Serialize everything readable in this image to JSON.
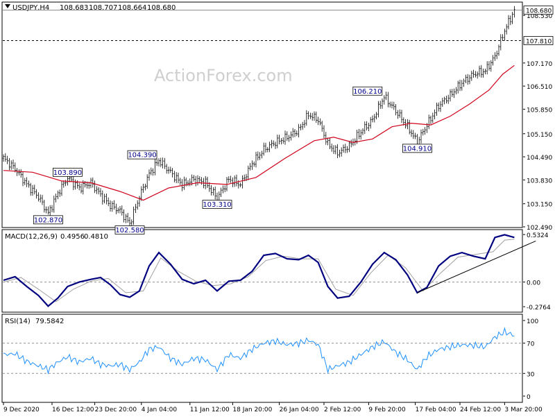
{
  "watermark": "ActionForex.com",
  "chart_data": [
    {
      "type": "line",
      "panel": "price",
      "header": {
        "symbol": "USDJPY,H4",
        "open": "108.683",
        "high": "108.707",
        "low": "108.664",
        "close": "108.680"
      },
      "ylim": [
        102.49,
        108.89
      ],
      "y_ticks": [
        "108.530",
        "107.170",
        "106.510",
        "105.850",
        "105.150",
        "104.490",
        "103.830",
        "103.150",
        "102.490"
      ],
      "current_price_label": "108.680",
      "current_price": 108.68,
      "horizontal_level_label": "107.810",
      "horizontal_level": 107.81,
      "price_points": [
        {
          "bar": 0,
          "value": 104.45
        },
        {
          "bar": 6,
          "value": 104.15
        },
        {
          "bar": 12,
          "value": 103.7
        },
        {
          "bar": 18,
          "value": 103.35
        },
        {
          "bar": 23,
          "value": 102.87
        },
        {
          "bar": 28,
          "value": 103.45
        },
        {
          "bar": 33,
          "value": 103.89
        },
        {
          "bar": 39,
          "value": 103.6
        },
        {
          "bar": 45,
          "value": 103.75
        },
        {
          "bar": 50,
          "value": 103.4
        },
        {
          "bar": 55,
          "value": 103.1
        },
        {
          "bar": 60,
          "value": 102.95
        },
        {
          "bar": 65,
          "value": 102.58
        },
        {
          "bar": 70,
          "value": 103.35
        },
        {
          "bar": 75,
          "value": 104.0
        },
        {
          "bar": 80,
          "value": 104.39
        },
        {
          "bar": 86,
          "value": 104.05
        },
        {
          "bar": 92,
          "value": 103.7
        },
        {
          "bar": 98,
          "value": 103.85
        },
        {
          "bar": 104,
          "value": 103.75
        },
        {
          "bar": 110,
          "value": 103.31
        },
        {
          "bar": 116,
          "value": 103.85
        },
        {
          "bar": 122,
          "value": 103.7
        },
        {
          "bar": 128,
          "value": 104.3
        },
        {
          "bar": 134,
          "value": 104.7
        },
        {
          "bar": 140,
          "value": 104.9
        },
        {
          "bar": 146,
          "value": 105.05
        },
        {
          "bar": 152,
          "value": 105.25
        },
        {
          "bar": 157,
          "value": 105.7
        },
        {
          "bar": 162,
          "value": 105.55
        },
        {
          "bar": 167,
          "value": 104.85
        },
        {
          "bar": 172,
          "value": 104.6
        },
        {
          "bar": 178,
          "value": 104.8
        },
        {
          "bar": 184,
          "value": 105.2
        },
        {
          "bar": 190,
          "value": 105.55
        },
        {
          "bar": 196,
          "value": 106.21
        },
        {
          "bar": 202,
          "value": 105.8
        },
        {
          "bar": 208,
          "value": 105.35
        },
        {
          "bar": 213,
          "value": 104.91
        },
        {
          "bar": 218,
          "value": 105.4
        },
        {
          "bar": 224,
          "value": 105.95
        },
        {
          "bar": 230,
          "value": 106.25
        },
        {
          "bar": 236,
          "value": 106.6
        },
        {
          "bar": 242,
          "value": 106.85
        },
        {
          "bar": 248,
          "value": 106.95
        },
        {
          "bar": 253,
          "value": 107.35
        },
        {
          "bar": 258,
          "value": 108.1
        },
        {
          "bar": 263,
          "value": 108.68
        }
      ],
      "moving_average": [
        {
          "bar": 0,
          "value": 104.1
        },
        {
          "bar": 15,
          "value": 104.05
        },
        {
          "bar": 30,
          "value": 103.8
        },
        {
          "bar": 45,
          "value": 103.75
        },
        {
          "bar": 60,
          "value": 103.5
        },
        {
          "bar": 72,
          "value": 103.25
        },
        {
          "bar": 85,
          "value": 103.6
        },
        {
          "bar": 100,
          "value": 103.75
        },
        {
          "bar": 115,
          "value": 103.7
        },
        {
          "bar": 130,
          "value": 103.9
        },
        {
          "bar": 145,
          "value": 104.45
        },
        {
          "bar": 160,
          "value": 104.95
        },
        {
          "bar": 170,
          "value": 105.05
        },
        {
          "bar": 180,
          "value": 104.9
        },
        {
          "bar": 190,
          "value": 105.0
        },
        {
          "bar": 200,
          "value": 105.35
        },
        {
          "bar": 210,
          "value": 105.45
        },
        {
          "bar": 220,
          "value": 105.4
        },
        {
          "bar": 230,
          "value": 105.65
        },
        {
          "bar": 240,
          "value": 106.0
        },
        {
          "bar": 250,
          "value": 106.4
        },
        {
          "bar": 257,
          "value": 106.85
        },
        {
          "bar": 263,
          "value": 107.1
        }
      ],
      "annotations": [
        {
          "label": "102.870",
          "bar": 23,
          "value": 102.87
        },
        {
          "label": "103.890",
          "bar": 33,
          "value": 103.89
        },
        {
          "label": "102.580",
          "bar": 65,
          "value": 102.58
        },
        {
          "label": "104.390",
          "bar": 80,
          "value": 104.39
        },
        {
          "label": "103.310",
          "bar": 110,
          "value": 103.31
        },
        {
          "label": "106.210",
          "bar": 196,
          "value": 106.21
        },
        {
          "label": "104.910",
          "bar": 213,
          "value": 104.91
        }
      ],
      "x_ticks": [
        {
          "bar": 0,
          "label": "9 Dec 2020"
        },
        {
          "bar": 25,
          "label": "16 Dec 12:00"
        },
        {
          "bar": 47,
          "label": "23 Dec 20:00"
        },
        {
          "bar": 71,
          "label": "4 Jan 04:00"
        },
        {
          "bar": 96,
          "label": "11 Jan 12:00"
        },
        {
          "bar": 118,
          "label": "18 Jan 20:00"
        },
        {
          "bar": 142,
          "label": "26 Jan 04:00"
        },
        {
          "bar": 165,
          "label": "2 Feb 12:00"
        },
        {
          "bar": 188,
          "label": "9 Feb 20:00"
        },
        {
          "bar": 212,
          "label": "17 Feb 04:00"
        },
        {
          "bar": 235,
          "label": "24 Feb 12:00"
        },
        {
          "bar": 258,
          "label": "3 Mar 20:00"
        }
      ],
      "colors": {
        "price_bars": "#000000",
        "moving_average": "#d0021b"
      }
    },
    {
      "type": "line",
      "panel": "macd",
      "header": {
        "name": "MACD(12,26,9)",
        "value1": "0.4956",
        "value2": "0.4810"
      },
      "ylim": [
        -0.33,
        0.58
      ],
      "y_ticks": [
        {
          "value": 0.5324,
          "label": "0.5324"
        },
        {
          "value": 0.0,
          "label": "0.00"
        },
        {
          "value": -0.2764,
          "label": "-0.2764"
        }
      ],
      "series": [
        {
          "values": [
            {
              "bar": 0,
              "value": 0.02
            },
            {
              "bar": 6,
              "value": 0.06
            },
            {
              "bar": 12,
              "value": -0.05
            },
            {
              "bar": 18,
              "value": -0.15
            },
            {
              "bar": 23,
              "value": -0.27
            },
            {
              "bar": 28,
              "value": -0.18
            },
            {
              "bar": 33,
              "value": -0.05
            },
            {
              "bar": 39,
              "value": 0.0
            },
            {
              "bar": 45,
              "value": 0.03
            },
            {
              "bar": 50,
              "value": 0.05
            },
            {
              "bar": 55,
              "value": -0.03
            },
            {
              "bar": 60,
              "value": -0.14
            },
            {
              "bar": 65,
              "value": -0.17
            },
            {
              "bar": 70,
              "value": -0.1
            },
            {
              "bar": 75,
              "value": 0.18
            },
            {
              "bar": 80,
              "value": 0.33
            },
            {
              "bar": 86,
              "value": 0.2
            },
            {
              "bar": 92,
              "value": 0.03
            },
            {
              "bar": 98,
              "value": -0.02
            },
            {
              "bar": 104,
              "value": 0.02
            },
            {
              "bar": 110,
              "value": -0.1
            },
            {
              "bar": 116,
              "value": 0.01
            },
            {
              "bar": 122,
              "value": 0.02
            },
            {
              "bar": 128,
              "value": 0.12
            },
            {
              "bar": 134,
              "value": 0.3
            },
            {
              "bar": 140,
              "value": 0.32
            },
            {
              "bar": 146,
              "value": 0.26
            },
            {
              "bar": 152,
              "value": 0.25
            },
            {
              "bar": 157,
              "value": 0.3
            },
            {
              "bar": 162,
              "value": 0.22
            },
            {
              "bar": 167,
              "value": -0.05
            },
            {
              "bar": 172,
              "value": -0.18
            },
            {
              "bar": 178,
              "value": -0.16
            },
            {
              "bar": 184,
              "value": 0.0
            },
            {
              "bar": 190,
              "value": 0.2
            },
            {
              "bar": 196,
              "value": 0.33
            },
            {
              "bar": 202,
              "value": 0.25
            },
            {
              "bar": 208,
              "value": 0.08
            },
            {
              "bar": 213,
              "value": -0.12
            },
            {
              "bar": 218,
              "value": -0.06
            },
            {
              "bar": 224,
              "value": 0.18
            },
            {
              "bar": 230,
              "value": 0.29
            },
            {
              "bar": 236,
              "value": 0.33
            },
            {
              "bar": 242,
              "value": 0.29
            },
            {
              "bar": 248,
              "value": 0.26
            },
            {
              "bar": 253,
              "value": 0.5
            },
            {
              "bar": 258,
              "value": 0.53
            },
            {
              "bar": 263,
              "value": 0.5
            }
          ]
        },
        {
          "values": [
            {
              "bar": 0,
              "value": 0.0
            },
            {
              "bar": 9,
              "value": 0.05
            },
            {
              "bar": 18,
              "value": -0.08
            },
            {
              "bar": 27,
              "value": -0.22
            },
            {
              "bar": 36,
              "value": -0.08
            },
            {
              "bar": 45,
              "value": 0.01
            },
            {
              "bar": 54,
              "value": 0.04
            },
            {
              "bar": 63,
              "value": -0.12
            },
            {
              "bar": 72,
              "value": -0.1
            },
            {
              "bar": 81,
              "value": 0.27
            },
            {
              "bar": 90,
              "value": 0.12
            },
            {
              "bar": 99,
              "value": 0.01
            },
            {
              "bar": 108,
              "value": -0.04
            },
            {
              "bar": 117,
              "value": -0.02
            },
            {
              "bar": 126,
              "value": 0.06
            },
            {
              "bar": 135,
              "value": 0.24
            },
            {
              "bar": 144,
              "value": 0.29
            },
            {
              "bar": 153,
              "value": 0.26
            },
            {
              "bar": 162,
              "value": 0.26
            },
            {
              "bar": 171,
              "value": -0.08
            },
            {
              "bar": 180,
              "value": -0.15
            },
            {
              "bar": 189,
              "value": 0.1
            },
            {
              "bar": 198,
              "value": 0.3
            },
            {
              "bar": 207,
              "value": 0.16
            },
            {
              "bar": 216,
              "value": -0.1
            },
            {
              "bar": 225,
              "value": 0.1
            },
            {
              "bar": 234,
              "value": 0.28
            },
            {
              "bar": 243,
              "value": 0.31
            },
            {
              "bar": 252,
              "value": 0.34
            },
            {
              "bar": 258,
              "value": 0.47
            },
            {
              "bar": 263,
              "value": 0.48
            }
          ]
        }
      ],
      "trendline": [
        {
          "bar": 213,
          "value": -0.12
        },
        {
          "bar": 274,
          "value": 0.46
        }
      ],
      "colors": {
        "macd": "#000080",
        "signal": "#a0a0a0",
        "zero_line": "#909090",
        "trendline": "#000000"
      }
    },
    {
      "type": "line",
      "panel": "rsi",
      "header": {
        "name": "RSI(14)",
        "value": "79.5842"
      },
      "ylim": [
        0,
        100
      ],
      "y_ticks": [
        {
          "value": 100,
          "label": "100"
        },
        {
          "value": 70,
          "label": "70"
        },
        {
          "value": 30,
          "label": "30"
        },
        {
          "value": 0,
          "label": "0"
        }
      ],
      "series": [
        {
          "values": [
            {
              "bar": 0,
              "value": 55
            },
            {
              "bar": 6,
              "value": 56
            },
            {
              "bar": 12,
              "value": 46
            },
            {
              "bar": 18,
              "value": 40
            },
            {
              "bar": 23,
              "value": 35
            },
            {
              "bar": 28,
              "value": 45
            },
            {
              "bar": 33,
              "value": 52
            },
            {
              "bar": 39,
              "value": 45
            },
            {
              "bar": 45,
              "value": 50
            },
            {
              "bar": 50,
              "value": 42
            },
            {
              "bar": 55,
              "value": 40
            },
            {
              "bar": 60,
              "value": 42
            },
            {
              "bar": 65,
              "value": 35
            },
            {
              "bar": 70,
              "value": 45
            },
            {
              "bar": 75,
              "value": 62
            },
            {
              "bar": 80,
              "value": 65
            },
            {
              "bar": 86,
              "value": 50
            },
            {
              "bar": 92,
              "value": 42
            },
            {
              "bar": 98,
              "value": 50
            },
            {
              "bar": 104,
              "value": 48
            },
            {
              "bar": 110,
              "value": 35
            },
            {
              "bar": 116,
              "value": 55
            },
            {
              "bar": 122,
              "value": 50
            },
            {
              "bar": 128,
              "value": 62
            },
            {
              "bar": 134,
              "value": 70
            },
            {
              "bar": 140,
              "value": 73
            },
            {
              "bar": 146,
              "value": 68
            },
            {
              "bar": 152,
              "value": 70
            },
            {
              "bar": 157,
              "value": 74
            },
            {
              "bar": 162,
              "value": 68
            },
            {
              "bar": 167,
              "value": 35
            },
            {
              "bar": 172,
              "value": 40
            },
            {
              "bar": 178,
              "value": 45
            },
            {
              "bar": 184,
              "value": 55
            },
            {
              "bar": 190,
              "value": 65
            },
            {
              "bar": 196,
              "value": 72
            },
            {
              "bar": 202,
              "value": 58
            },
            {
              "bar": 208,
              "value": 48
            },
            {
              "bar": 213,
              "value": 35
            },
            {
              "bar": 218,
              "value": 52
            },
            {
              "bar": 224,
              "value": 62
            },
            {
              "bar": 230,
              "value": 65
            },
            {
              "bar": 236,
              "value": 68
            },
            {
              "bar": 242,
              "value": 67
            },
            {
              "bar": 248,
              "value": 65
            },
            {
              "bar": 253,
              "value": 78
            },
            {
              "bar": 258,
              "value": 85
            },
            {
              "bar": 263,
              "value": 80
            }
          ]
        }
      ],
      "colors": {
        "rsi": "#1e90ff",
        "levels": "#909090"
      }
    }
  ]
}
